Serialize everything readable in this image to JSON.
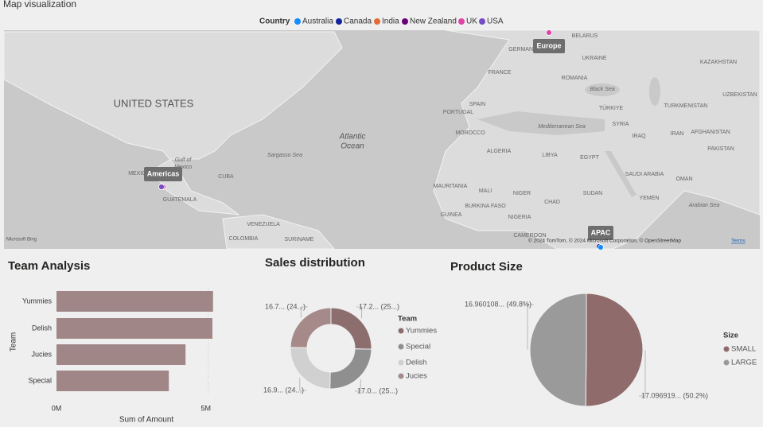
{
  "header": {
    "title": "Map visualization"
  },
  "map": {
    "legend_title": "Country",
    "legend": [
      {
        "name": "Australia",
        "color": "#118dff"
      },
      {
        "name": "Canada",
        "color": "#12239e"
      },
      {
        "name": "India",
        "color": "#e66c37"
      },
      {
        "name": "New Zealand",
        "color": "#6b007b"
      },
      {
        "name": "UK",
        "color": "#e044a7"
      },
      {
        "name": "USA",
        "color": "#744ec2"
      }
    ],
    "regions": [
      "Americas",
      "Europe",
      "APAC"
    ],
    "labels": [
      "BELARUS",
      "GERMANY",
      "UKRAINE",
      "KAZAKHSTAN",
      "FRANCE",
      "ROMANIA",
      "UZBEKISTAN",
      "UNITED STATES",
      "Black Sea",
      "SPAIN",
      "PORTUGAL",
      "TÜRKIYE",
      "TURKMENISTAN",
      "Mediterranean Sea",
      "SYRIA",
      "IRAQ",
      "IRAN",
      "AFGHANISTAN",
      "PAKISTAN",
      "Atlantic",
      "Ocean",
      "MOROCCO",
      "ALGERIA",
      "LIBYA",
      "EGYPT",
      "Sargasso Sea",
      "Gulf of",
      "Mexico",
      "SAUDI ARABIA",
      "OMAN",
      "CUBA",
      "MAURITANIA",
      "MALI",
      "NIGER",
      "SUDAN",
      "YEMEN",
      "CHAD",
      "Arabian Sea",
      "GUATEMALA",
      "GUINEA",
      "BURKINA FASO",
      "NIGERIA",
      "VENEZUELA",
      "CAMEROON",
      "COLOMBIA",
      "SURINAME",
      "MEXICO"
    ],
    "attribution": [
      "Microsoft Bing",
      "© 2024 TomTom, © 2024 Microsoft Corporation, © OpenStreetMap",
      "Terms"
    ]
  },
  "charts": [
    {
      "type": "bar",
      "title": "Team Analysis",
      "categories": [
        "Yummies",
        "Delish",
        "Jucies",
        "Special"
      ],
      "values": [
        5240000,
        5220000,
        4320000,
        3760000
      ],
      "color": "#a08686",
      "xlim": [
        0,
        5300000
      ],
      "xticks": [
        {
          "value": 0,
          "label": "0M"
        },
        {
          "value": 5000000,
          "label": "5M"
        }
      ],
      "x_label": "Sum of Amount",
      "y_label": "Team",
      "grid": true
    },
    {
      "type": "donut",
      "title": "Sales distribution",
      "legend_title": "Team",
      "categories": [
        "Yummies",
        "Special",
        "Delish",
        "Jucies"
      ],
      "values": [
        17.2,
        17.0,
        16.9,
        16.7
      ],
      "value_labels": [
        "17.2... (25...)",
        "17.0... (25...)",
        "16.9... (24...)",
        "16.7... (24...)"
      ],
      "colors": [
        "#8c6e6e",
        "#8f8f8f",
        "#d0d0d0",
        "#a68a8a"
      ]
    },
    {
      "type": "pie",
      "title": "Product Size",
      "legend_title": "Size",
      "categories": [
        "SMALL",
        "LARGE"
      ],
      "values": [
        17.096919,
        16.960108
      ],
      "value_labels": [
        "17.096919... (50.2%)",
        "16.960108... (49.8%)"
      ],
      "colors": [
        "#8f6b6b",
        "#9a9a9a"
      ]
    }
  ]
}
